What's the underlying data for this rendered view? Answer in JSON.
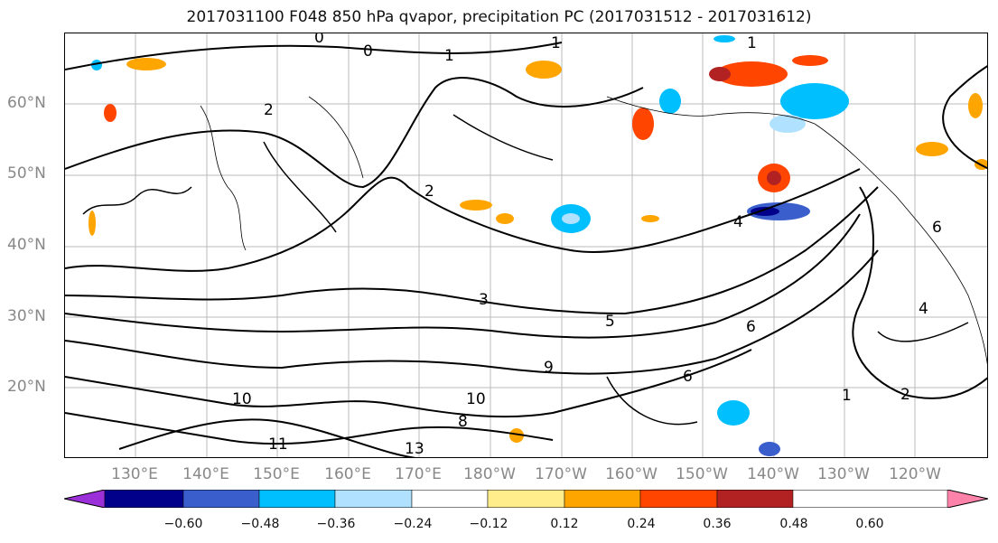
{
  "title": "2017031100 F048 850 hPa qvapor, precipitation PC (2017031512 - 2017031612)",
  "lat_labels": [
    "60°N",
    "50°N",
    "40°N",
    "30°N",
    "20°N"
  ],
  "lon_labels": [
    "130°E",
    "140°E",
    "150°E",
    "160°E",
    "170°E",
    "180°W",
    "170°W",
    "160°W",
    "150°W",
    "140°W",
    "130°W",
    "120°W"
  ],
  "contour_labels": [
    "0",
    "0",
    "1",
    "1",
    "1",
    "2",
    "2",
    "3",
    "4",
    "5",
    "6",
    "6",
    "8",
    "9",
    "10",
    "10",
    "11",
    "13",
    "1",
    "2",
    "4",
    "6"
  ],
  "colorbar": {
    "colors": [
      "#9b30d9",
      "#00008b",
      "#3a5fcd",
      "#00bfff",
      "#b0e2ff",
      "#ffffff",
      "#ffec8b",
      "#ffa500",
      "#ff4500",
      "#b22222",
      "#ff82ab"
    ],
    "ticks": [
      "−0.60",
      "−0.48",
      "−0.36",
      "−0.24",
      "−0.12",
      "0.12",
      "0.24",
      "0.36",
      "0.48",
      "0.60"
    ]
  }
}
